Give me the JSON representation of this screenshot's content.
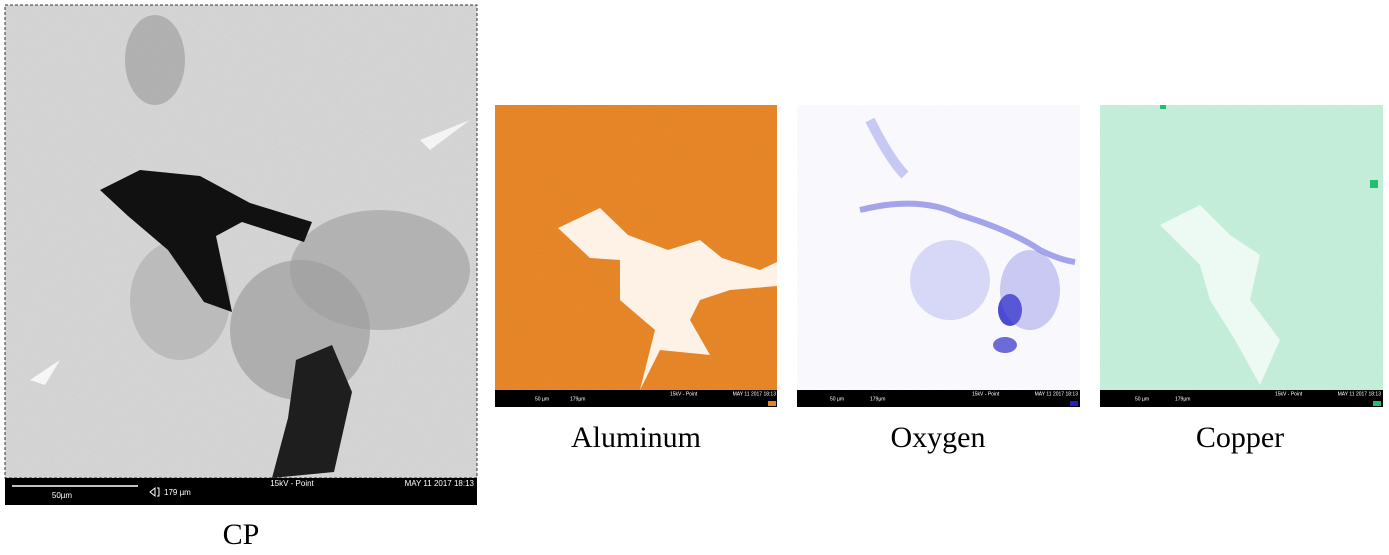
{
  "panels": [
    {
      "label": "CP",
      "scale_bar": "50µm",
      "field_width": "179 µm",
      "beam": "15kV - Point",
      "timestamp": "MAY 11 2017 18:13"
    },
    {
      "label": "Aluminum",
      "scale_bar": "50 µm",
      "field_width": "179µm",
      "beam": "15kV - Point",
      "timestamp": "MAY 11 2017 18:13"
    },
    {
      "label": "Oxygen",
      "scale_bar": "50 µm",
      "field_width": "179µm",
      "beam": "15kV - Point",
      "timestamp": "MAY 11 2017 18:13"
    },
    {
      "label": "Copper",
      "scale_bar": "50 µm",
      "field_width": "179µm",
      "beam": "15kV - Point",
      "timestamp": "MAY 11 2017 18:13"
    }
  ]
}
